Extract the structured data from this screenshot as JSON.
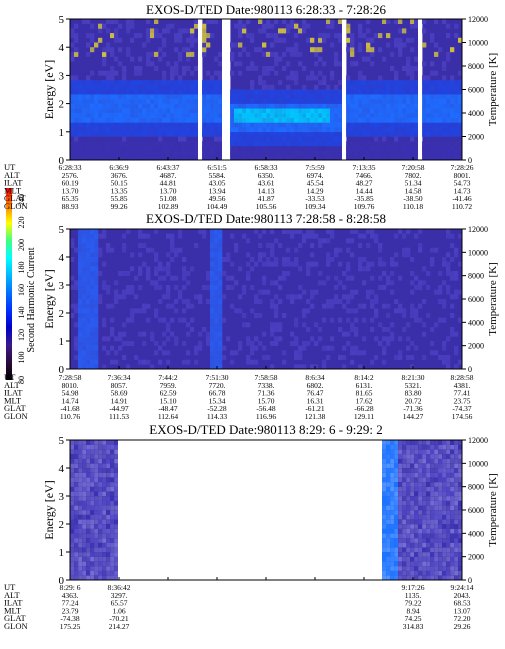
{
  "colorbar": {
    "label": "Second Harmonic Current",
    "ticks": [
      "240",
      "220",
      "200",
      "180",
      "160",
      "140",
      "120",
      "100",
      "80"
    ],
    "colors": [
      "#000000",
      "#2a0a3a",
      "#3a1a8a",
      "#0000c8",
      "#0030ff",
      "#0070ff",
      "#00b8ff",
      "#00ffff",
      "#40ff80",
      "#ffff00",
      "#ff8000",
      "#ff0000"
    ]
  },
  "chart_data": [
    {
      "type": "heatmap",
      "title": "EXOS-D/TED   Date:980113   6:28:33 - 7:28:26",
      "ylabel": "Energy [eV]",
      "y2label": "Temperature [K]",
      "ylim": [
        0,
        5
      ],
      "y2lim": [
        0,
        12000
      ],
      "yticks": [
        "0",
        "1",
        "2",
        "3",
        "4",
        "5"
      ],
      "y2ticks": [
        "0",
        "2000",
        "4000",
        "6000",
        "8000",
        "10000",
        "12000"
      ],
      "gaps": [
        [
          0.325,
          0.335
        ],
        [
          0.388,
          0.405
        ],
        [
          0.695,
          0.705
        ],
        [
          0.888,
          0.9
        ]
      ],
      "orbit_rows": [
        "UT",
        "ALT",
        "ILAT",
        "MLT",
        "GLAT",
        "GLON"
      ],
      "orbit_columns": [
        [
          "6:28:33",
          "2576.",
          "60.19",
          "13.70",
          "65.35",
          "88.93"
        ],
        [
          "6:36:9",
          "3676.",
          "50.15",
          "13.35",
          "55.85",
          "99.26"
        ],
        [
          "6:43:37",
          "4687.",
          "44.81",
          "13.70",
          "51.08",
          "102.89"
        ],
        [
          "6:51:5",
          "5584.",
          "43.05",
          "13.94",
          "49.56",
          "104.49"
        ],
        [
          "6:58:33",
          "6350.",
          "43.61",
          "14.13",
          "41.87",
          "105.56"
        ],
        [
          "7:5:59",
          "6974.",
          "45.54",
          "14.29",
          "-33.53",
          "109.34"
        ],
        [
          "7:13:35",
          "7466.",
          "48.27",
          "14.44",
          "-35.85",
          "109.76"
        ],
        [
          "7:20:58",
          "7802.",
          "51.34",
          "14.58",
          "-38.50",
          "110.18"
        ],
        [
          "7:28:26",
          "8001.",
          "54.73",
          "14.73",
          "-41.46",
          "110.72"
        ]
      ]
    },
    {
      "type": "heatmap",
      "title": "EXOS-D/TED   Date:980113   7:28:58 - 8:28:58",
      "ylabel": "Energy [eV]",
      "y2label": "Temperature [K]",
      "ylim": [
        0,
        5
      ],
      "y2lim": [
        0,
        12000
      ],
      "yticks": [
        "0",
        "1",
        "2",
        "3",
        "4",
        "5"
      ],
      "y2ticks": [
        "0",
        "2000",
        "4000",
        "6000",
        "8000",
        "10000",
        "12000"
      ],
      "gaps": [],
      "orbit_rows": [
        "UT",
        "ALT",
        "ILAT",
        "MLT",
        "GLAT",
        "GLON"
      ],
      "orbit_columns": [
        [
          "7:28:58",
          "8010.",
          "54.98",
          "14.74",
          "-41.68",
          "110.76"
        ],
        [
          "7:36:34",
          "8057.",
          "58.69",
          "14.91",
          "-44.97",
          "111.53"
        ],
        [
          "7:44:2",
          "7959.",
          "62.59",
          "15.10",
          "-48.47",
          "112.64"
        ],
        [
          "7:51:30",
          "7720.",
          "66.78",
          "15.34",
          "-52.28",
          "114.33"
        ],
        [
          "7:58:58",
          "7338.",
          "71.36",
          "15.70",
          "-56.48",
          "116.96"
        ],
        [
          "8:6:34",
          "6802.",
          "76.47",
          "16.31",
          "-61.21",
          "121.38"
        ],
        [
          "8:14:2",
          "6131.",
          "81.65",
          "17.62",
          "-66.28",
          "129.11"
        ],
        [
          "8:21:30",
          "5321.",
          "83.80",
          "20.72",
          "-71.36",
          "144.27"
        ],
        [
          "8:28:58",
          "4381.",
          "77.41",
          "23.75",
          "-74.37",
          "174.56"
        ]
      ]
    },
    {
      "type": "heatmap",
      "title": "EXOS-D/TED   Date:980113   8:29: 6 - 9:29: 2",
      "ylabel": "Energy [eV]",
      "y2label": "Temperature [K]",
      "ylim": [
        0,
        5
      ],
      "y2lim": [
        0,
        12000
      ],
      "yticks": [
        "0",
        "1",
        "2",
        "3",
        "4",
        "5"
      ],
      "y2ticks": [
        "0",
        "2000",
        "4000",
        "6000",
        "8000",
        "10000",
        "12000"
      ],
      "gaps": [
        [
          0.125,
          0.79
        ]
      ],
      "orbit_rows": [
        "UT",
        "ALT",
        "ILAT",
        "MLT",
        "GLAT",
        "GLON"
      ],
      "orbit_columns": [
        [
          "8:29: 6",
          "4363.",
          "77.24",
          "23.79",
          "-74.38",
          "175.25"
        ],
        [
          "8:36:42",
          "3297.",
          "65.57",
          "1.06",
          "-70.21",
          "214.27"
        ],
        [
          "",
          "",
          "",
          "",
          "",
          ""
        ],
        [
          "",
          "",
          "",
          "",
          "",
          ""
        ],
        [
          "",
          "",
          "",
          "",
          "",
          ""
        ],
        [
          "",
          "",
          "",
          "",
          "",
          ""
        ],
        [
          "",
          "",
          "",
          "",
          "",
          ""
        ],
        [
          "9:17:26",
          "1135.",
          "79.22",
          "8.94",
          "74.25",
          "314.83"
        ],
        [
          "9:24:14",
          "2043.",
          "68.53",
          "13.07",
          "72.20",
          "29.26"
        ]
      ]
    }
  ]
}
